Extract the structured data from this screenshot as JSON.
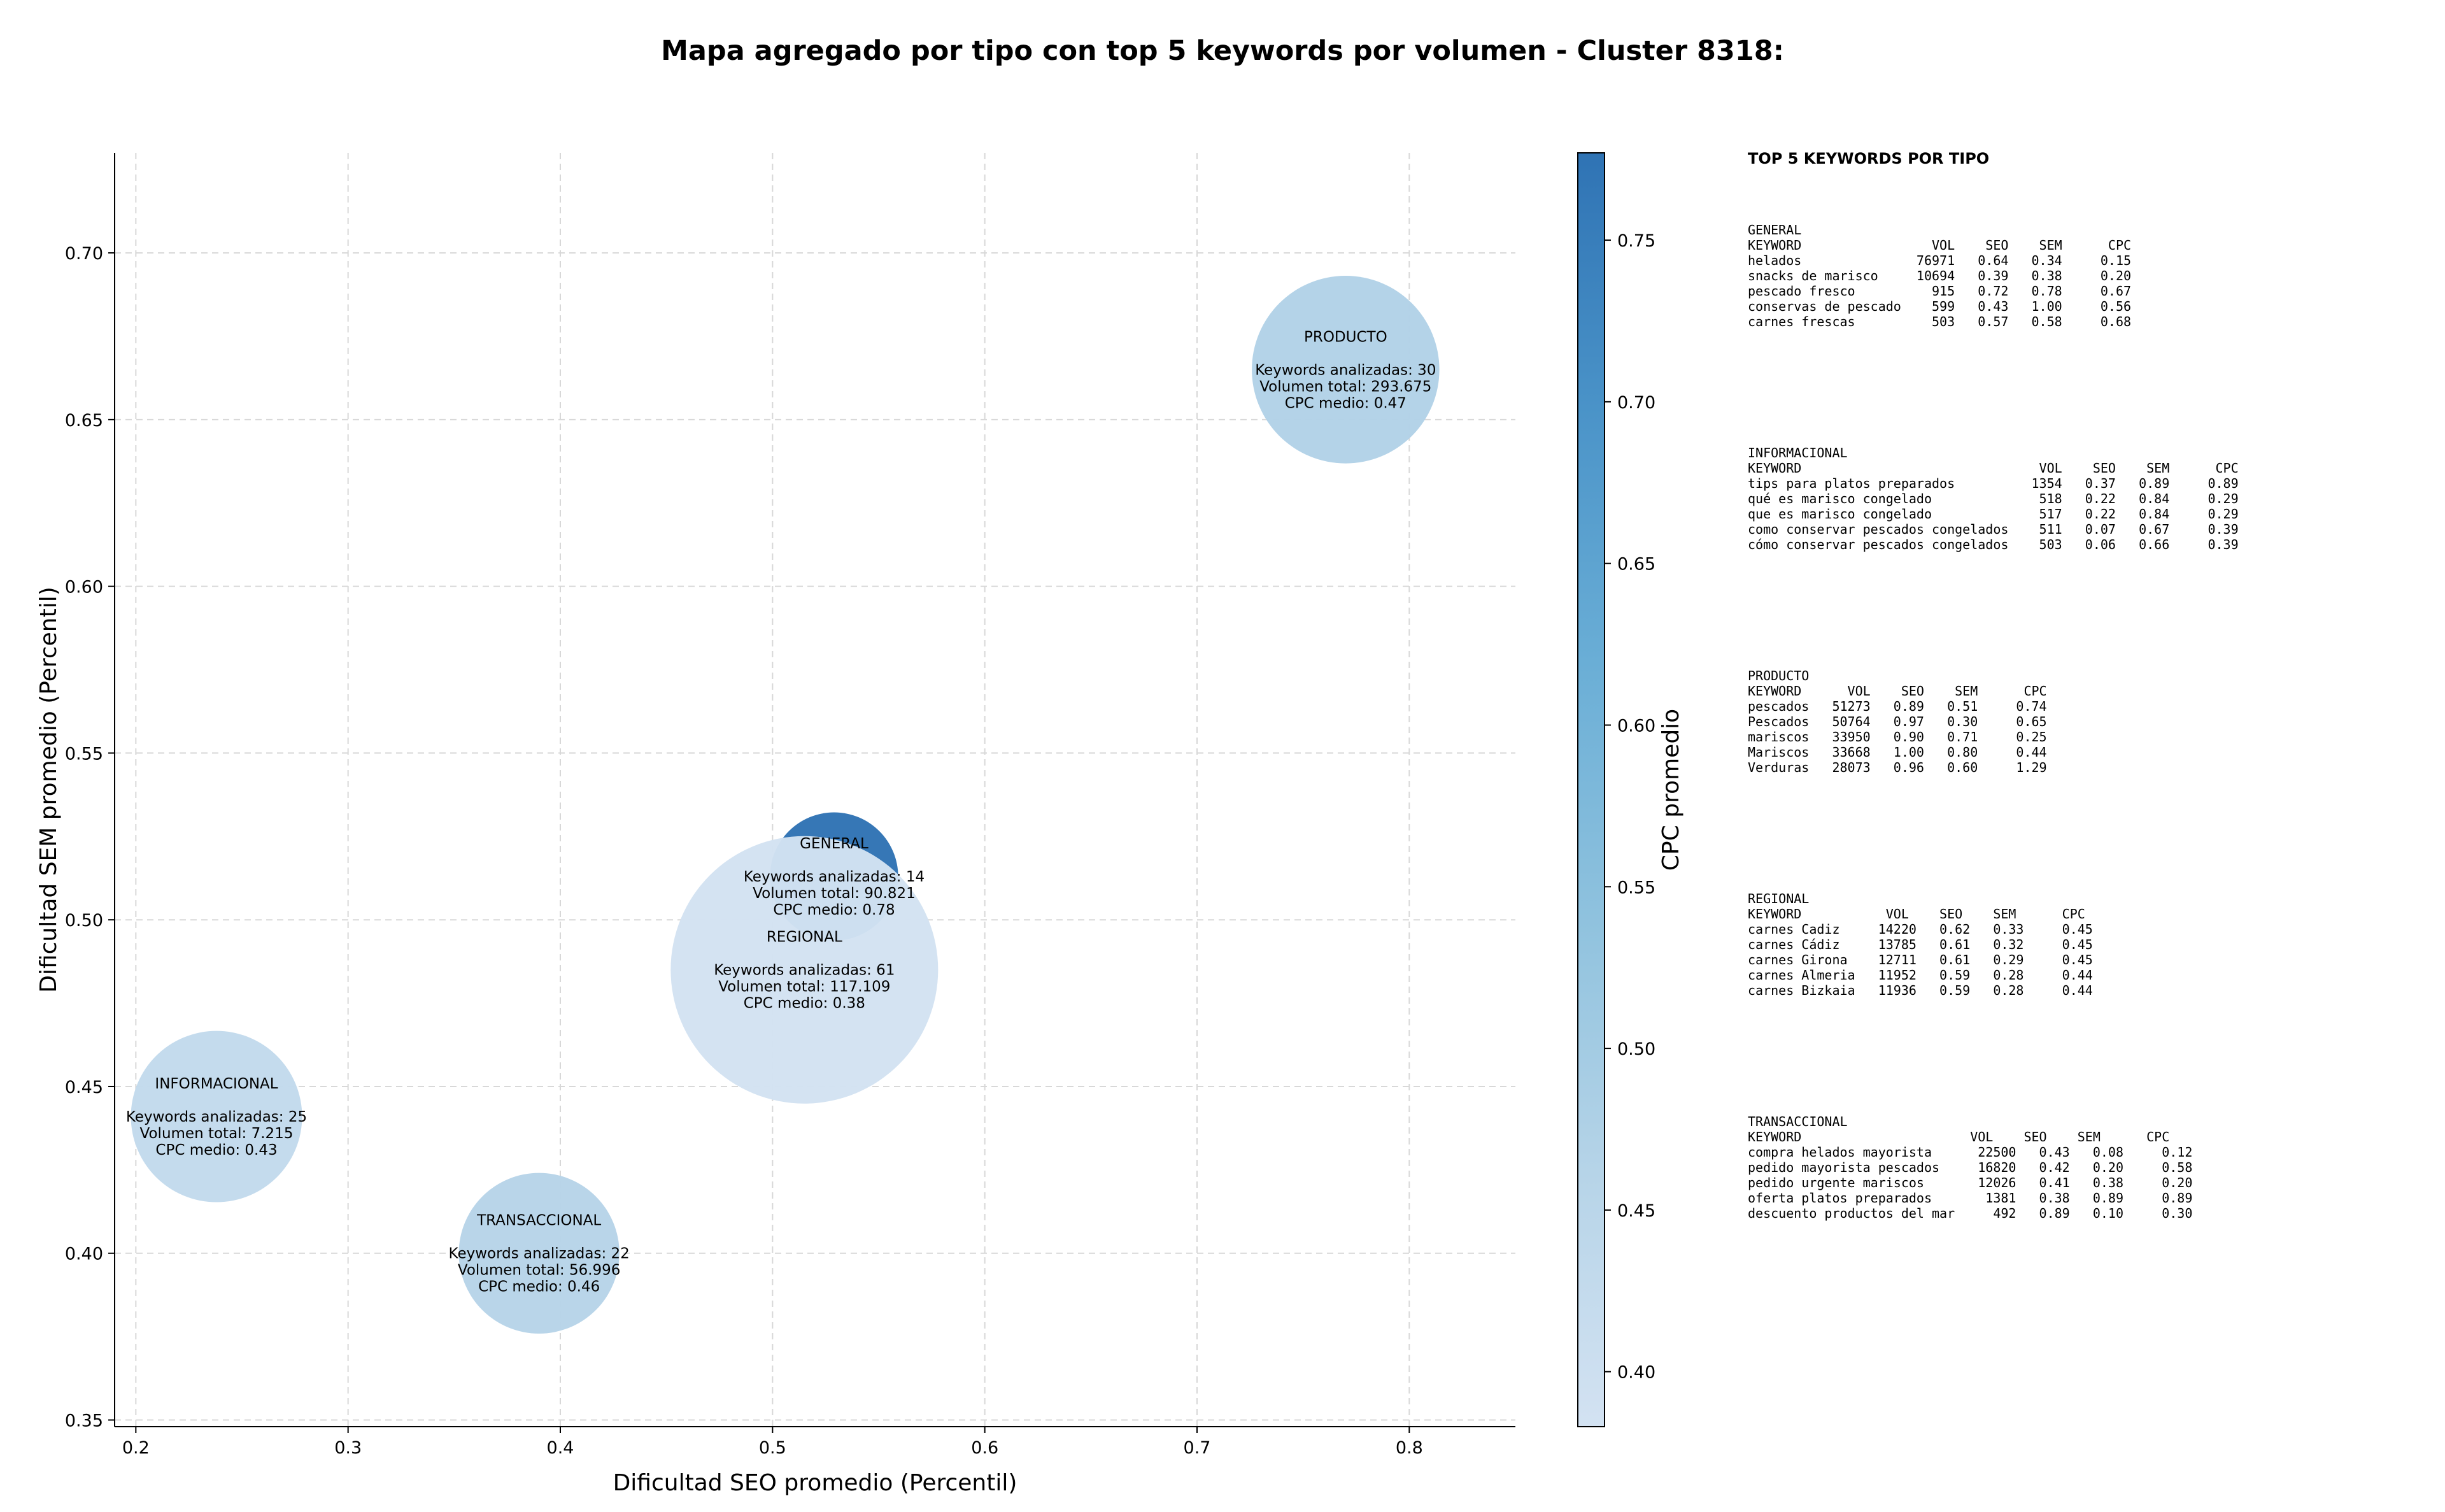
{
  "chart_data": {
    "type": "scatter",
    "title": "Mapa agregado por tipo con top 5 keywords por volumen - Cluster 8318:",
    "xlabel": "Dificultad SEO promedio (Percentil)",
    "ylabel": "Dificultad SEM promedio (Percentil)",
    "xlim": [
      0.19,
      0.85
    ],
    "ylim": [
      0.348,
      0.73
    ],
    "xticks": [
      0.2,
      0.3,
      0.4,
      0.5,
      0.6,
      0.7,
      0.8
    ],
    "yticks": [
      0.35,
      0.4,
      0.45,
      0.5,
      0.55,
      0.6,
      0.65,
      0.7
    ],
    "grid": true,
    "colorbar": {
      "label": "CPC promedio",
      "range": [
        0.383,
        0.777
      ],
      "ticks": [
        0.4,
        0.45,
        0.5,
        0.55,
        0.6,
        0.65,
        0.7,
        0.75
      ],
      "colormap": [
        "#d3e2f2",
        "#b6d4e8",
        "#8fc2de",
        "#6aaed6",
        "#4a93c8",
        "#2f73b4"
      ]
    },
    "bubble_size_note": "Keywords analizadas",
    "points": [
      {
        "name": "PRODUCTO",
        "seo": 0.77,
        "sem": 0.665,
        "cpc": 0.47,
        "keywords": 30,
        "volumen": "293.675",
        "lines": [
          "PRODUCTO",
          "",
          "Keywords analizadas: 30",
          "Volumen total: 293.675",
          "CPC medio: 0.47"
        ]
      },
      {
        "name": "GENERAL",
        "seo": 0.529,
        "sem": 0.513,
        "cpc": 0.78,
        "keywords": 14,
        "volumen": "90.821",
        "lines": [
          "GENERAL",
          "",
          "Keywords analizadas: 14",
          "Volumen total: 90.821",
          "CPC medio: 0.78"
        ]
      },
      {
        "name": "REGIONAL",
        "seo": 0.515,
        "sem": 0.485,
        "cpc": 0.38,
        "keywords": 61,
        "volumen": "117.109",
        "lines": [
          "REGIONAL",
          "",
          "Keywords analizadas: 61",
          "Volumen total: 117.109",
          "CPC medio: 0.38"
        ]
      },
      {
        "name": "INFORMACIONAL",
        "seo": 0.238,
        "sem": 0.441,
        "cpc": 0.43,
        "keywords": 25,
        "volumen": "7.215",
        "lines": [
          "INFORMACIONAL",
          "",
          "Keywords analizadas: 25",
          "Volumen total: 7.215",
          "CPC medio: 0.43"
        ]
      },
      {
        "name": "TRANSACCIONAL",
        "seo": 0.39,
        "sem": 0.4,
        "cpc": 0.46,
        "keywords": 22,
        "volumen": "56.996",
        "lines": [
          "TRANSACCIONAL",
          "",
          "Keywords analizadas: 22",
          "Volumen total: 56.996",
          "CPC medio: 0.46"
        ]
      }
    ]
  },
  "side_panel": {
    "title": "TOP 5 KEYWORDS POR TIPO",
    "blocks": [
      {
        "name": "GENERAL",
        "text": "GENERAL\nKEYWORD                 VOL    SEO    SEM      CPC\nhelados               76971   0.64   0.34     0.15\nsnacks de marisco     10694   0.39   0.38     0.20\npescado fresco          915   0.72   0.78     0.67\nconservas de pescado    599   0.43   1.00     0.56\ncarnes frescas          503   0.57   0.58     0.68"
      },
      {
        "name": "INFORMACIONAL",
        "text": "INFORMACIONAL\nKEYWORD                               VOL    SEO    SEM      CPC\ntips para platos preparados          1354   0.37   0.89     0.89\nqué es marisco congelado              518   0.22   0.84     0.29\nque es marisco congelado              517   0.22   0.84     0.29\ncomo conservar pescados congelados    511   0.07   0.67     0.39\ncómo conservar pescados congelados    503   0.06   0.66     0.39"
      },
      {
        "name": "PRODUCTO",
        "text": "PRODUCTO\nKEYWORD      VOL    SEO    SEM      CPC\npescados   51273   0.89   0.51     0.74\nPescados   50764   0.97   0.30     0.65\nmariscos   33950   0.90   0.71     0.25\nMariscos   33668   1.00   0.80     0.44\nVerduras   28073   0.96   0.60     1.29"
      },
      {
        "name": "REGIONAL",
        "text": "REGIONAL\nKEYWORD           VOL    SEO    SEM      CPC\ncarnes Cadiz     14220   0.62   0.33     0.45\ncarnes Cádiz     13785   0.61   0.32     0.45\ncarnes Girona    12711   0.61   0.29     0.45\ncarnes Almeria   11952   0.59   0.28     0.44\ncarnes Bizkaia   11936   0.59   0.28     0.44"
      },
      {
        "name": "TRANSACCIONAL",
        "text": "TRANSACCIONAL\nKEYWORD                      VOL    SEO    SEM      CPC\ncompra helados mayorista      22500   0.43   0.08     0.12\npedido mayorista pescados     16820   0.42   0.20     0.58\npedido urgente mariscos       12026   0.41   0.38     0.20\noferta platos preparados       1381   0.38   0.89     0.89\ndescuento productos del mar     492   0.89   0.10     0.30"
      }
    ]
  }
}
